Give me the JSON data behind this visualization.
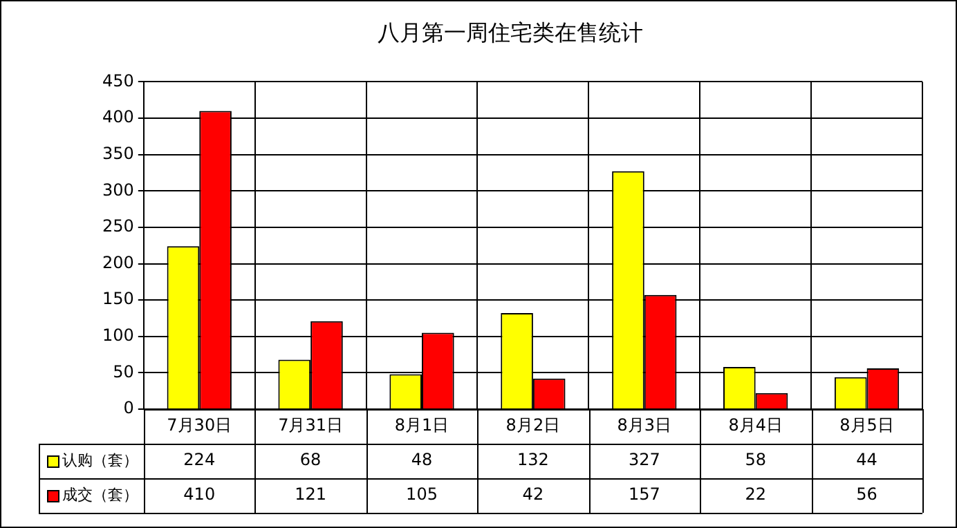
{
  "chart_data": {
    "type": "bar",
    "title": "八月第一周住宅类在售统计",
    "categories": [
      "7月30日",
      "7月31日",
      "8月1日",
      "8月2日",
      "8月3日",
      "8月4日",
      "8月5日"
    ],
    "series": [
      {
        "name": "认购（套）",
        "color": "#ffff00",
        "values": [
          224,
          68,
          48,
          132,
          327,
          58,
          44
        ]
      },
      {
        "name": "成交（套）",
        "color": "#ff0000",
        "values": [
          410,
          121,
          105,
          42,
          157,
          22,
          56
        ]
      }
    ],
    "ylim": [
      0,
      450
    ],
    "yticks": [
      0,
      50,
      100,
      150,
      200,
      250,
      300,
      350,
      400,
      450
    ],
    "grid": true,
    "legend": "bottom",
    "data_labels": true
  }
}
